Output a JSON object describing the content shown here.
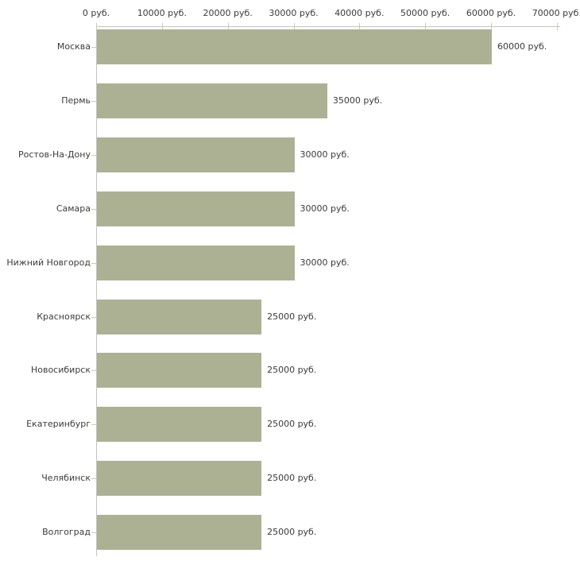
{
  "chart_data": {
    "type": "bar",
    "orientation": "horizontal",
    "title": "",
    "xlabel": "",
    "ylabel": "",
    "grid": false,
    "legend": false,
    "categories": [
      "Москва",
      "Пермь",
      "Ростов-На-Дону",
      "Самара",
      "Нижний Новгород",
      "Красноярск",
      "Новосибирск",
      "Екатеринбург",
      "Челябинск",
      "Волгоград"
    ],
    "values": [
      60000,
      35000,
      30000,
      30000,
      30000,
      25000,
      25000,
      25000,
      25000,
      25000
    ],
    "value_labels": [
      "60000 руб.",
      "35000 руб.",
      "30000 руб.",
      "30000 руб.",
      "30000 руб.",
      "25000 руб.",
      "25000 руб.",
      "25000 руб.",
      "25000 руб.",
      "25000 руб."
    ],
    "x_axis": {
      "position": "top",
      "range": [
        0,
        70000
      ],
      "ticks": [
        0,
        10000,
        20000,
        30000,
        40000,
        50000,
        60000,
        70000
      ],
      "tick_labels": [
        "0 руб.",
        "10000 руб.",
        "20000 руб.",
        "30000 руб.",
        "40000 руб.",
        "50000 руб.",
        "60000 руб.",
        "70000 руб."
      ]
    },
    "colors": {
      "bar": "#acb194",
      "axis_line": "#c3c3c3",
      "tick_mark": "#cdcda2",
      "text": "#3b3b3b",
      "background": "#ffffff"
    }
  }
}
